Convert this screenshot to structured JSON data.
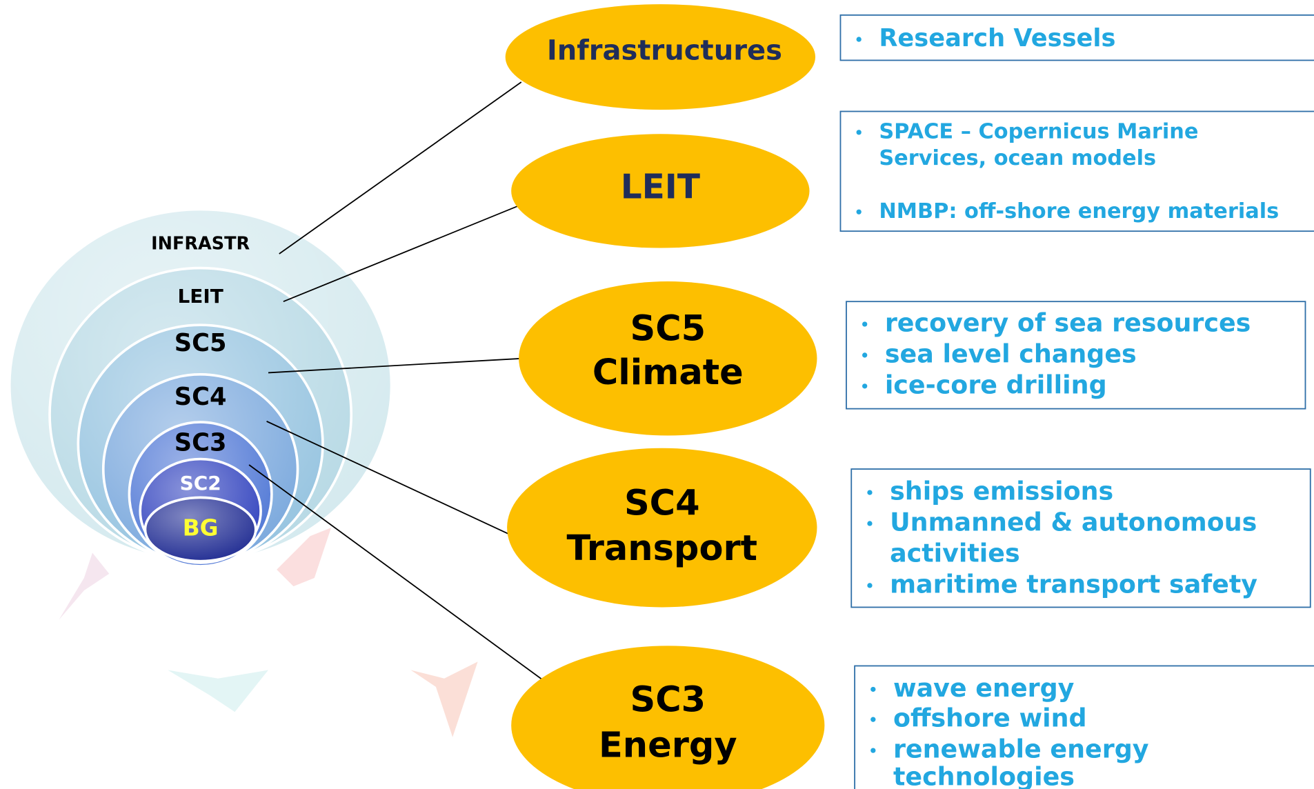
{
  "nested_circles": [
    {
      "label": "INFRASTR"
    },
    {
      "label": "LEIT"
    },
    {
      "label": "SC5"
    },
    {
      "label": "SC4"
    },
    {
      "label": "SC3"
    },
    {
      "label": "SC2"
    },
    {
      "label": "BG"
    }
  ],
  "programmes": [
    {
      "label": [
        "Infrastructures"
      ],
      "items": [
        [
          "Research Vessels"
        ]
      ]
    },
    {
      "label": [
        "LEIT"
      ],
      "items": [
        [
          "SPACE – Copernicus Marine",
          "Services, ocean models"
        ],
        [
          "NMBP: off-shore energy materials"
        ]
      ]
    },
    {
      "label": [
        "SC5",
        "Climate"
      ],
      "items": [
        [
          "recovery of sea resources"
        ],
        [
          "sea level changes"
        ],
        [
          "ice-core drilling"
        ]
      ]
    },
    {
      "label": [
        "SC4",
        "Transport"
      ],
      "items": [
        [
          "ships emissions"
        ],
        [
          "Unmanned & autonomous",
          "activities"
        ],
        [
          "maritime transport safety"
        ]
      ]
    },
    {
      "label": [
        "SC3",
        "Energy"
      ],
      "items": [
        [
          "wave energy"
        ],
        [
          "offshore wind"
        ],
        [
          "renewable energy",
          "technologies"
        ]
      ]
    }
  ]
}
